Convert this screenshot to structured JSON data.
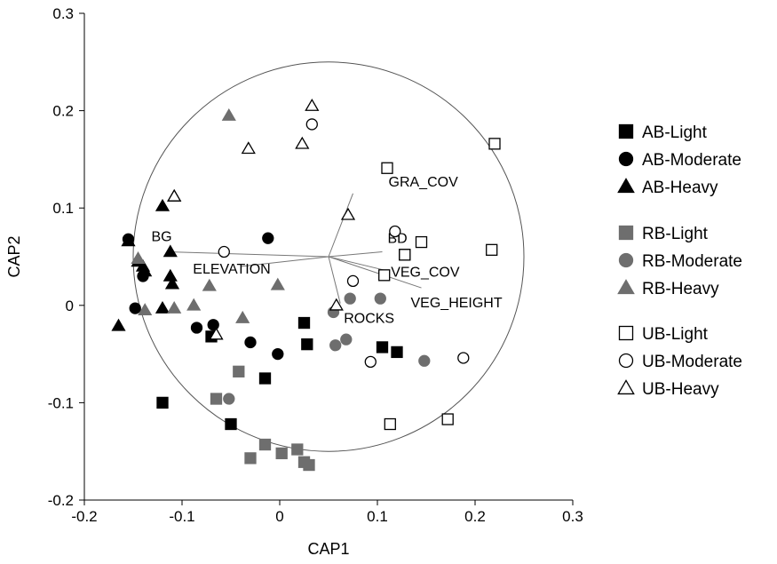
{
  "chart_data": {
    "type": "scatter",
    "title": "",
    "xlabel": "CAP1",
    "ylabel": "CAP2",
    "xlim": [
      -0.2,
      0.3
    ],
    "ylim": [
      -0.2,
      0.3
    ],
    "x_ticks": [
      "-0.2",
      "-0.1",
      "0",
      "0.1",
      "0.2",
      "0.3"
    ],
    "y_ticks": [
      "0.3",
      "0.2",
      "0.1",
      "0",
      "-0.1",
      "-0.2"
    ],
    "grid": false,
    "legend_position": "right",
    "circle": {
      "center": [
        0.05,
        0.05
      ],
      "radius": 0.2
    },
    "colors": {
      "AB": "#000000",
      "RB": "#6e6e6e",
      "UB": "#ffffff",
      "outline": "#000000"
    },
    "vectors": [
      {
        "label": "GRA_COV",
        "x": 0.075,
        "y": 0.115
      },
      {
        "label": "BD",
        "x": 0.105,
        "y": 0.055
      },
      {
        "label": "VEG_COV",
        "x": 0.112,
        "y": 0.035
      },
      {
        "label": "VEG_HEIGHT",
        "x": 0.145,
        "y": 0.018
      },
      {
        "label": "ROCKS",
        "x": 0.062,
        "y": 0.002
      },
      {
        "label": "ELEVATION",
        "x": -0.04,
        "y": 0.04
      },
      {
        "label": "BG",
        "x": -0.115,
        "y": 0.055
      }
    ],
    "series": [
      {
        "name": "AB-Light",
        "marker": "square",
        "color": "#000000",
        "filled": true,
        "x": [
          -0.12,
          -0.07,
          -0.05,
          -0.015,
          0.025,
          0.028,
          0.105,
          0.12
        ],
        "y": [
          -0.1,
          -0.032,
          -0.122,
          -0.075,
          -0.018,
          -0.04,
          -0.043,
          -0.048
        ]
      },
      {
        "name": "AB-Moderate",
        "marker": "circle",
        "color": "#000000",
        "filled": true,
        "x": [
          -0.155,
          -0.14,
          -0.148,
          -0.085,
          -0.068,
          -0.03,
          -0.002,
          -0.012
        ],
        "y": [
          0.068,
          0.03,
          -0.003,
          -0.023,
          -0.02,
          -0.038,
          -0.05,
          0.069
        ]
      },
      {
        "name": "AB-Heavy",
        "marker": "triangle",
        "color": "#000000",
        "filled": true,
        "x": [
          -0.165,
          -0.155,
          -0.14,
          -0.12,
          -0.112,
          -0.112,
          -0.11,
          -0.12,
          -0.138,
          -0.108,
          -0.145
        ],
        "y": [
          -0.021,
          0.066,
          0.04,
          0.102,
          0.055,
          0.03,
          0.022,
          -0.003,
          0.035,
          0.112,
          0.045
        ]
      },
      {
        "name": "RB-Light",
        "marker": "square",
        "color": "#6e6e6e",
        "filled": true,
        "x": [
          -0.065,
          -0.042,
          -0.03,
          -0.015,
          0.002,
          0.018,
          0.025,
          0.03
        ],
        "y": [
          -0.096,
          -0.068,
          -0.157,
          -0.143,
          -0.152,
          -0.148,
          -0.161,
          -0.164
        ]
      },
      {
        "name": "RB-Moderate",
        "marker": "circle",
        "color": "#6e6e6e",
        "filled": true,
        "x": [
          -0.052,
          0.055,
          0.057,
          0.068,
          0.072,
          0.103,
          0.148
        ],
        "y": [
          -0.096,
          -0.007,
          -0.041,
          -0.035,
          0.007,
          0.007,
          -0.057
        ]
      },
      {
        "name": "RB-Heavy",
        "marker": "triangle",
        "color": "#6e6e6e",
        "filled": true,
        "x": [
          -0.145,
          -0.138,
          -0.108,
          -0.088,
          -0.072,
          -0.038,
          -0.052,
          -0.002
        ],
        "y": [
          0.048,
          -0.005,
          -0.003,
          0.0,
          0.02,
          -0.013,
          0.195,
          0.021
        ]
      },
      {
        "name": "UB-Light",
        "marker": "square",
        "color": "#ffffff",
        "filled": false,
        "x": [
          0.11,
          0.128,
          0.145,
          0.128,
          0.107,
          0.113,
          0.172,
          0.217,
          0.22
        ],
        "y": [
          0.141,
          0.052,
          0.065,
          0.052,
          0.031,
          -0.122,
          -0.117,
          0.057,
          0.166
        ]
      },
      {
        "name": "UB-Moderate",
        "marker": "circle",
        "color": "#ffffff",
        "filled": false,
        "x": [
          0.033,
          -0.057,
          0.118,
          0.075,
          0.093,
          0.188
        ],
        "y": [
          0.186,
          0.055,
          0.076,
          0.025,
          -0.058,
          -0.054
        ]
      },
      {
        "name": "UB-Heavy",
        "marker": "triangle",
        "color": "#ffffff",
        "filled": false,
        "x": [
          -0.108,
          -0.032,
          0.023,
          0.033,
          0.07,
          0.058,
          -0.065
        ],
        "y": [
          0.112,
          0.161,
          0.166,
          0.205,
          0.093,
          0.0,
          -0.03
        ]
      }
    ]
  },
  "legend": {
    "groups": [
      [
        {
          "label": "AB-Light",
          "marker": "square",
          "color": "#000000",
          "filled": true
        },
        {
          "label": "AB-Moderate",
          "marker": "circle",
          "color": "#000000",
          "filled": true
        },
        {
          "label": "AB-Heavy",
          "marker": "triangle",
          "color": "#000000",
          "filled": true
        }
      ],
      [
        {
          "label": "RB-Light",
          "marker": "square",
          "color": "#6e6e6e",
          "filled": true
        },
        {
          "label": "RB-Moderate",
          "marker": "circle",
          "color": "#6e6e6e",
          "filled": true
        },
        {
          "label": "RB-Heavy",
          "marker": "triangle",
          "color": "#6e6e6e",
          "filled": true
        }
      ],
      [
        {
          "label": "UB-Light",
          "marker": "square",
          "color": "#ffffff",
          "filled": false
        },
        {
          "label": "UB-Moderate",
          "marker": "circle",
          "color": "#ffffff",
          "filled": false
        },
        {
          "label": "UB-Heavy",
          "marker": "triangle",
          "color": "#ffffff",
          "filled": false
        }
      ]
    ]
  }
}
